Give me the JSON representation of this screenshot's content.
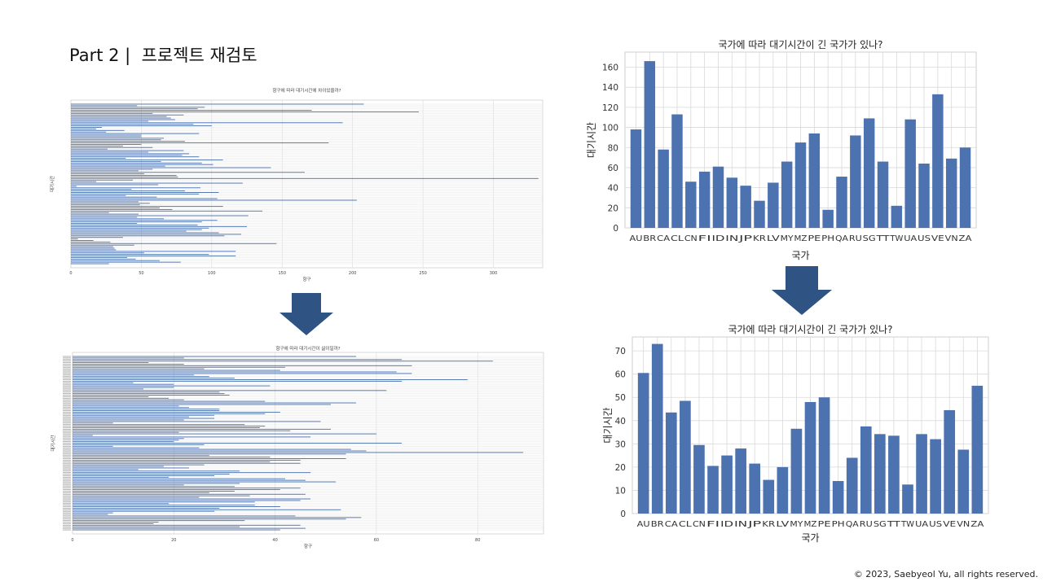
{
  "slide": {
    "title": "Part 2 |  프로젝트 재검토",
    "copyright": "© 2023,  Saebyeol Yu, all rights reserved."
  },
  "colors": {
    "bar": "#4c72b0",
    "arrow": "#2f5483",
    "grid": "#d9d9d9",
    "frame": "#cfcfcf"
  },
  "chart_data": [
    {
      "type": "bar",
      "orientation": "horizontal",
      "title": "항구에 따라 대기시간에 차이있을까?",
      "xlabel": "항구",
      "ylabel": "대기시간",
      "xlim": [
        0,
        335
      ],
      "xticks": [
        0,
        50,
        100,
        150,
        200,
        250,
        300
      ],
      "grid": true,
      "values": [
        208,
        47,
        95,
        90,
        171,
        247,
        58,
        80,
        68,
        71,
        74,
        55,
        193,
        87,
        100,
        22,
        18,
        38,
        25,
        91,
        50,
        50,
        66,
        64,
        81,
        183,
        50,
        37,
        58,
        26,
        80,
        55,
        84,
        79,
        91,
        39,
        108,
        64,
        93,
        101,
        67,
        142,
        58,
        48,
        166,
        52,
        75,
        76,
        332,
        44,
        18,
        122,
        62,
        4,
        92,
        43,
        81,
        105,
        91,
        39,
        61,
        104,
        203,
        48,
        56,
        49,
        108,
        63,
        72,
        136,
        27,
        48,
        126,
        47,
        66,
        104,
        93,
        47,
        90,
        125,
        98,
        93,
        82,
        105,
        121,
        109,
        37,
        5,
        16,
        28,
        146,
        45,
        30,
        31,
        32,
        117,
        52,
        98,
        117,
        40,
        46,
        63,
        78,
        27
      ]
    },
    {
      "type": "bar",
      "orientation": "horizontal",
      "title": "항구에 따라 대기시간이 삶이일까?",
      "xlabel": "항구",
      "ylabel": "대기시간",
      "xlim": [
        0,
        93
      ],
      "xticks": [
        0,
        20,
        40,
        60,
        80
      ],
      "grid": true,
      "values": [
        56,
        22,
        65,
        83,
        15,
        22,
        67,
        42,
        26,
        41,
        64,
        67,
        24,
        27,
        32,
        78,
        65,
        12,
        20,
        39,
        20,
        14,
        62,
        29,
        30,
        31,
        15,
        19,
        22,
        38,
        56,
        51,
        21,
        23,
        29,
        29,
        41,
        38,
        28,
        23,
        28,
        22,
        49,
        8,
        34,
        38,
        37,
        51,
        43,
        21,
        60,
        4,
        47,
        22,
        21,
        20,
        65,
        26,
        8,
        25,
        55,
        58,
        89,
        54,
        27,
        39,
        54,
        45,
        39,
        45,
        26,
        18,
        23,
        13,
        33,
        47,
        31,
        28,
        19,
        42,
        46,
        52,
        33,
        22,
        32,
        45,
        41,
        32,
        27,
        46,
        35,
        25,
        47,
        45,
        36,
        19,
        36,
        41,
        29,
        53,
        28,
        8,
        7,
        44,
        57,
        54,
        34,
        17,
        16,
        45,
        33,
        46,
        41
      ]
    },
    {
      "type": "bar",
      "title": "국가에 따라 대기시간이 긴 국가가 있나?",
      "xlabel": "국가",
      "ylabel": "대기시간",
      "ylim": [
        0,
        175
      ],
      "yticks": [
        0,
        20,
        40,
        60,
        80,
        100,
        120,
        140,
        160
      ],
      "grid": true,
      "categories": [
        "AU",
        "BR",
        "CA",
        "CL",
        "CN",
        "FI",
        "ID",
        "IN",
        "JP",
        "KR",
        "LV",
        "MY",
        "MZ",
        "PE",
        "PH",
        "QA",
        "RU",
        "SG",
        "TT",
        "TW",
        "UA",
        "US",
        "VE",
        "VN",
        "ZA"
      ],
      "values": [
        98,
        166,
        78,
        113,
        46,
        56,
        61,
        50,
        42,
        27,
        45,
        66,
        85,
        94,
        18,
        51,
        92,
        109,
        66,
        22,
        108,
        64,
        133,
        69,
        80
      ]
    },
    {
      "type": "bar",
      "title": "국가에 따라 대기시간이 긴 국가가 있나?",
      "xlabel": "국가",
      "ylabel": "대기시간",
      "ylim": [
        0,
        76
      ],
      "yticks": [
        0,
        10,
        20,
        30,
        40,
        50,
        60,
        70
      ],
      "grid": true,
      "categories": [
        "AU",
        "BR",
        "CA",
        "CL",
        "CN",
        "FI",
        "ID",
        "IN",
        "JP",
        "KR",
        "LV",
        "MY",
        "MZ",
        "PE",
        "PH",
        "QA",
        "RU",
        "SG",
        "TT",
        "TW",
        "UA",
        "US",
        "VE",
        "VN",
        "ZA"
      ],
      "values": [
        60.5,
        73,
        43.5,
        48.5,
        29.5,
        20.5,
        25,
        28,
        21.5,
        14.5,
        20,
        36.5,
        48,
        50,
        14,
        24,
        37.5,
        34.2,
        33.5,
        12.5,
        34.2,
        32,
        44.5,
        27.5,
        55
      ]
    }
  ]
}
